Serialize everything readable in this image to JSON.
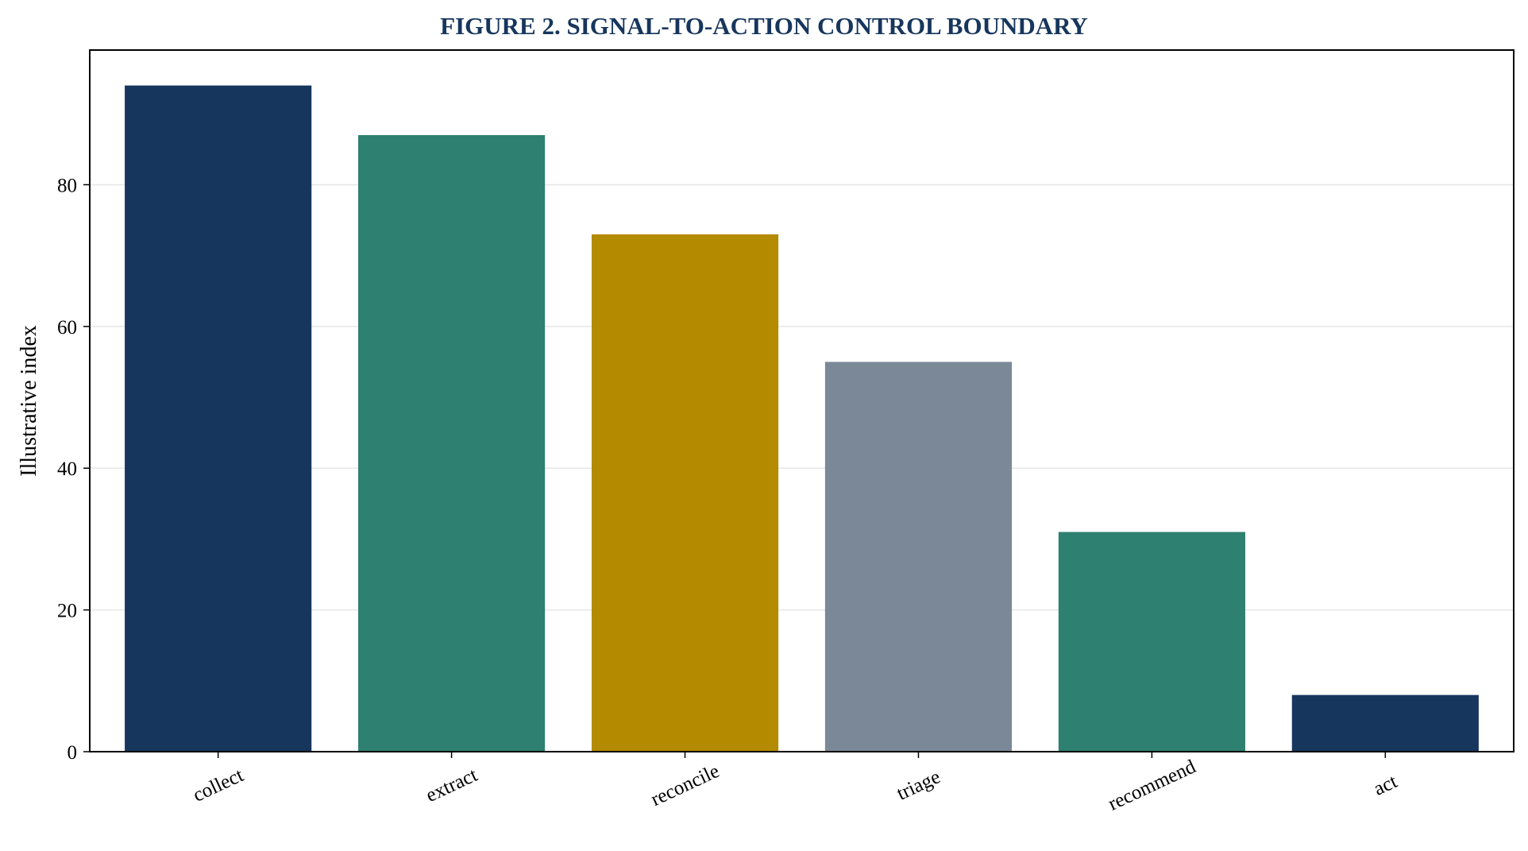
{
  "chart_data": {
    "type": "bar",
    "title": "FIGURE 2. SIGNAL-TO-ACTION CONTROL BOUNDARY",
    "xlabel": "",
    "ylabel": "Illustrative index",
    "categories": [
      "collect",
      "extract",
      "reconcile",
      "triage",
      "recommend",
      "act"
    ],
    "values": [
      94,
      87,
      73,
      55,
      31,
      8
    ],
    "bar_colors": [
      "#17365d",
      "#2e8070",
      "#b38a00",
      "#7b8897",
      "#2e8070",
      "#17365d"
    ],
    "ylim": [
      0,
      99
    ],
    "yticks": [
      0,
      20,
      40,
      60,
      80
    ],
    "grid": "y-major",
    "legend": "none",
    "title_color": "#17365d",
    "grid_color": "#e6e6e6"
  }
}
